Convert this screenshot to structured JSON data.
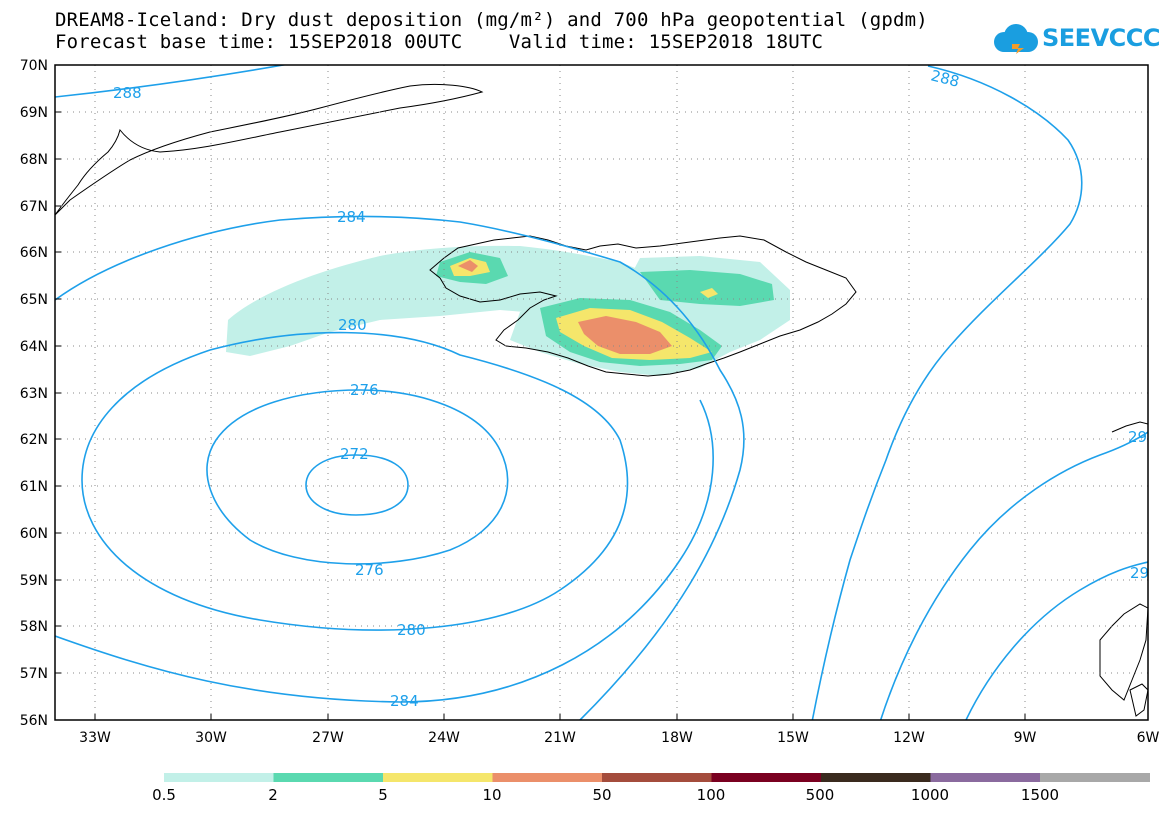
{
  "title_line1": "DREAM8-Iceland: Dry dust deposition (mg/m²) and 700 hPa geopotential (gpdm)",
  "title_line2": "Forecast base time: 15SEP2018 00UTC    Valid time: 15SEP2018 18UTC",
  "logo_text": "SEEVCCC",
  "map": {
    "lat_labels": [
      "70N",
      "69N",
      "68N",
      "67N",
      "66N",
      "65N",
      "64N",
      "63N",
      "62N",
      "61N",
      "60N",
      "59N",
      "58N",
      "57N",
      "56N"
    ],
    "lon_labels": [
      "33W",
      "30W",
      "27W",
      "24W",
      "21W",
      "18W",
      "15W",
      "12W",
      "9W",
      "6W"
    ],
    "contour_labels": [
      "288",
      "288",
      "284",
      "280",
      "276",
      "272",
      "276",
      "280",
      "284",
      "29",
      "29"
    ],
    "contour_color": "#1ea0ea"
  },
  "colorbar": {
    "labels": [
      "0.5",
      "2",
      "5",
      "10",
      "50",
      "100",
      "500",
      "1000",
      "1500"
    ],
    "colors": [
      "#c2f0e8",
      "#5ad9b0",
      "#f5e66b",
      "#eb8f6a",
      "#a44c3c",
      "#7a0020",
      "#3a2a1e",
      "#8a6a9e",
      "#a8a8a8"
    ]
  }
}
